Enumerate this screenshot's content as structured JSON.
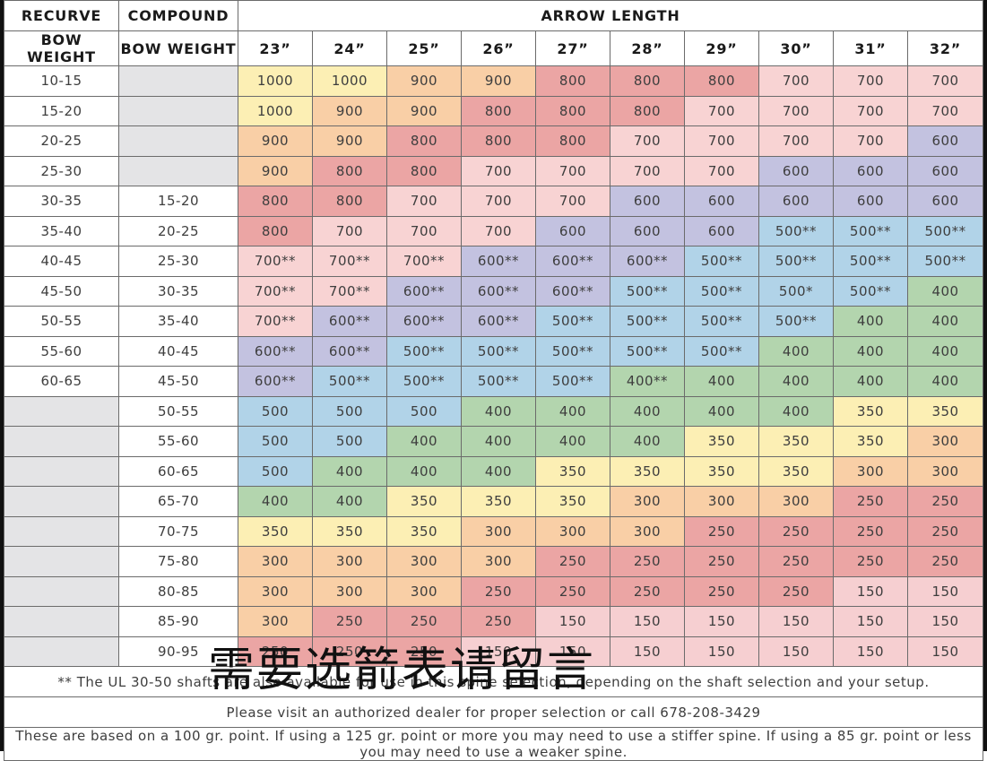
{
  "header": {
    "recurve_title": "RECURVE",
    "compound_title": "COMPOUND",
    "arrow_length_title": "ARROW LENGTH",
    "recurve_sub": "BOW WEIGHT",
    "compound_sub": "BOW WEIGHT",
    "lengths": [
      "23”",
      "24”",
      "25”",
      "26”",
      "27”",
      "28”",
      "29”",
      "30”",
      "31”",
      "32”"
    ]
  },
  "rows": [
    {
      "recurve": "10-15",
      "compound": "",
      "values": [
        "1000",
        "1000",
        "900",
        "900",
        "800",
        "800",
        "800",
        "700",
        "700",
        "700"
      ]
    },
    {
      "recurve": "15-20",
      "compound": "",
      "values": [
        "1000",
        "900",
        "900",
        "800",
        "800",
        "800",
        "700",
        "700",
        "700",
        "700"
      ]
    },
    {
      "recurve": "20-25",
      "compound": "",
      "values": [
        "900",
        "900",
        "800",
        "800",
        "800",
        "700",
        "700",
        "700",
        "700",
        "600"
      ]
    },
    {
      "recurve": "25-30",
      "compound": "",
      "values": [
        "900",
        "800",
        "800",
        "700",
        "700",
        "700",
        "700",
        "600",
        "600",
        "600"
      ]
    },
    {
      "recurve": "30-35",
      "compound": "15-20",
      "values": [
        "800",
        "800",
        "700",
        "700",
        "700",
        "600",
        "600",
        "600",
        "600",
        "600"
      ]
    },
    {
      "recurve": "35-40",
      "compound": "20-25",
      "values": [
        "800",
        "700",
        "700",
        "700",
        "600",
        "600",
        "600",
        "500**",
        "500**",
        "500**"
      ]
    },
    {
      "recurve": "40-45",
      "compound": "25-30",
      "values": [
        "700**",
        "700**",
        "700**",
        "600**",
        "600**",
        "600**",
        "500**",
        "500**",
        "500**",
        "500**"
      ]
    },
    {
      "recurve": "45-50",
      "compound": "30-35",
      "values": [
        "700**",
        "700**",
        "600**",
        "600**",
        "600**",
        "500**",
        "500**",
        "500*",
        "500**",
        "400"
      ]
    },
    {
      "recurve": "50-55",
      "compound": "35-40",
      "values": [
        "700**",
        "600**",
        "600**",
        "600**",
        "500**",
        "500**",
        "500**",
        "500**",
        "400",
        "400"
      ]
    },
    {
      "recurve": "55-60",
      "compound": "40-45",
      "values": [
        "600**",
        "600**",
        "500**",
        "500**",
        "500**",
        "500**",
        "500**",
        "400",
        "400",
        "400"
      ]
    },
    {
      "recurve": "60-65",
      "compound": "45-50",
      "values": [
        "600**",
        "500**",
        "500**",
        "500**",
        "500**",
        "400**",
        "400",
        "400",
        "400",
        "400"
      ]
    },
    {
      "recurve": "",
      "compound": "50-55",
      "values": [
        "500",
        "500",
        "500",
        "400",
        "400",
        "400",
        "400",
        "400",
        "350",
        "350"
      ]
    },
    {
      "recurve": "",
      "compound": "55-60",
      "values": [
        "500",
        "500",
        "400",
        "400",
        "400",
        "400",
        "350",
        "350",
        "350",
        "300"
      ]
    },
    {
      "recurve": "",
      "compound": "60-65",
      "values": [
        "500",
        "400",
        "400",
        "400",
        "350",
        "350",
        "350",
        "350",
        "300",
        "300"
      ]
    },
    {
      "recurve": "",
      "compound": "65-70",
      "values": [
        "400",
        "400",
        "350",
        "350",
        "350",
        "300",
        "300",
        "300",
        "250",
        "250"
      ]
    },
    {
      "recurve": "",
      "compound": "70-75",
      "values": [
        "350",
        "350",
        "350",
        "300",
        "300",
        "300",
        "250",
        "250",
        "250",
        "250"
      ]
    },
    {
      "recurve": "",
      "compound": "75-80",
      "values": [
        "300",
        "300",
        "300",
        "300",
        "250",
        "250",
        "250",
        "250",
        "250",
        "250"
      ]
    },
    {
      "recurve": "",
      "compound": "80-85",
      "values": [
        "300",
        "300",
        "300",
        "250",
        "250",
        "250",
        "250",
        "250",
        "150",
        "150"
      ]
    },
    {
      "recurve": "",
      "compound": "85-90",
      "values": [
        "300",
        "250",
        "250",
        "250",
        "150",
        "150",
        "150",
        "150",
        "150",
        "150"
      ]
    },
    {
      "recurve": "",
      "compound": "90-95",
      "values": [
        "250",
        "250",
        "250",
        "150",
        "150",
        "150",
        "150",
        "150",
        "150",
        "150"
      ]
    }
  ],
  "notes": [
    "** The UL 30-50 shafts are also available for use in this spine selection, depending on the shaft selection and your setup.",
    "Please visit an authorized dealer for proper selection or call 678-208-3429",
    "These are based on a 100 gr. point. If using a 125 gr. point or more you may need to use a stiffer spine. If using a 85 gr. point or less you may need to use a weaker spine."
  ],
  "overlay_text": "需要选箭表请留言",
  "spine_colors": {
    "1000": "#fcefb4",
    "900": "#f9cfa6",
    "800": "#eba5a4",
    "700": "#f8d3d3",
    "600": "#c3c2e0",
    "500": "#b1d3e8",
    "400": "#b3d5ae",
    "350": "#fcefb4",
    "300": "#f9cfa6",
    "250": "#eba5a4",
    "150": "#f6cfd1"
  }
}
